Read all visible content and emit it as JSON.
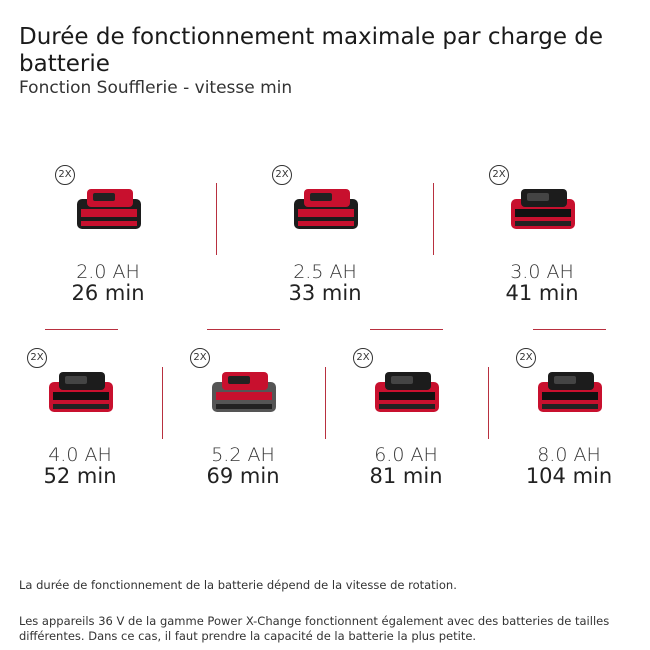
{
  "title": "Durée de fonctionnement maximale par charge de batterie",
  "subtitle": "Fonction Soufflerie - vitesse min",
  "batteries": [
    {
      "badge": "2X",
      "capacity": "2.0 AH",
      "runtime": "26 min",
      "style": "black"
    },
    {
      "badge": "2X",
      "capacity": "2.5 AH",
      "runtime": "33 min",
      "style": "black"
    },
    {
      "badge": "2X",
      "capacity": "3.0 AH",
      "runtime": "41 min",
      "style": "red"
    },
    {
      "badge": "2X",
      "capacity": "4.0 AH",
      "runtime": "52 min",
      "style": "red"
    },
    {
      "badge": "2X",
      "capacity": "5.2 AH",
      "runtime": "69 min",
      "style": "grey"
    },
    {
      "badge": "2X",
      "capacity": "6.0 AH",
      "runtime": "81 min",
      "style": "red"
    },
    {
      "badge": "2X",
      "capacity": "8.0 AH",
      "runtime": "104 min",
      "style": "red"
    }
  ],
  "notes": [
    "La durée de fonctionnement de la batterie dépend de la vitesse de rotation.",
    "Les appareils 36 V de la gamme Power X-Change fonctionnent également avec des batteries de tailles différentes. Dans ce cas, il faut prendre la capacité de la batterie la plus petite."
  ],
  "colors": {
    "accent": "#c8102e",
    "divider": "#b8303f",
    "black": "#1c1c1c",
    "grey": "#555555"
  }
}
